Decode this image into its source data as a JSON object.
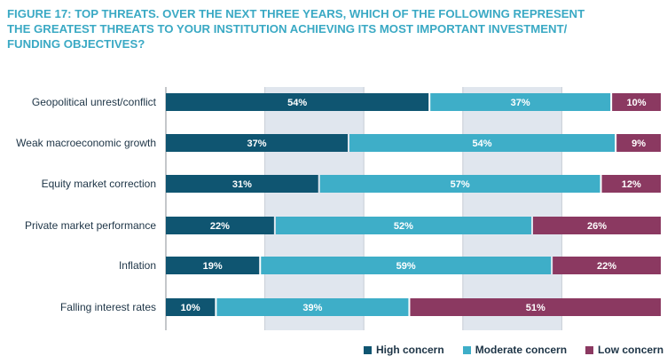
{
  "title_lines": [
    "FIGURE 17: TOP THREATS. OVER THE NEXT THREE YEARS, WHICH OF THE FOLLOWING REPRESENT",
    "THE GREATEST THREATS TO YOUR INSTITUTION ACHIEVING ITS MOST IMPORTANT INVESTMENT/",
    "FUNDING OBJECTIVES?"
  ],
  "colors": {
    "title": "#3aa9c4",
    "high": "#0f5571",
    "moderate": "#3eaec8",
    "low": "#8b3961",
    "band": "#e0e6ee",
    "label_text": "#1d3446"
  },
  "chart_data": {
    "type": "bar",
    "orientation": "horizontal",
    "stacked": true,
    "title": "FIGURE 17: TOP THREATS. OVER THE NEXT THREE YEARS, WHICH OF THE FOLLOWING REPRESENT THE GREATEST THREATS TO YOUR INSTITUTION ACHIEVING ITS MOST IMPORTANT INVESTMENT/ FUNDING OBJECTIVES?",
    "categories": [
      "Geopolitical unrest/conflict",
      "Weak macroeconomic growth",
      "Equity market correction",
      "Private market performance",
      "Inflation",
      "Falling interest rates"
    ],
    "series": [
      {
        "name": "High concern",
        "values": [
          54,
          37,
          31,
          22,
          19,
          10
        ],
        "labels": [
          "54%",
          "37%",
          "31%",
          "22%",
          "19%",
          "10%"
        ]
      },
      {
        "name": "Moderate concern",
        "values": [
          37,
          54,
          57,
          52,
          59,
          39
        ],
        "labels": [
          "37%",
          "54%",
          "57%",
          "52%",
          "59%",
          "39%"
        ]
      },
      {
        "name": "Low concern",
        "values": [
          10,
          9,
          12,
          26,
          22,
          51
        ],
        "labels": [
          "10%",
          "9%",
          "12%",
          "26%",
          "22%",
          "51%"
        ]
      }
    ],
    "xlim": [
      0,
      100
    ],
    "legend_position": "bottom-right",
    "grid": "alternating vertical bands"
  }
}
